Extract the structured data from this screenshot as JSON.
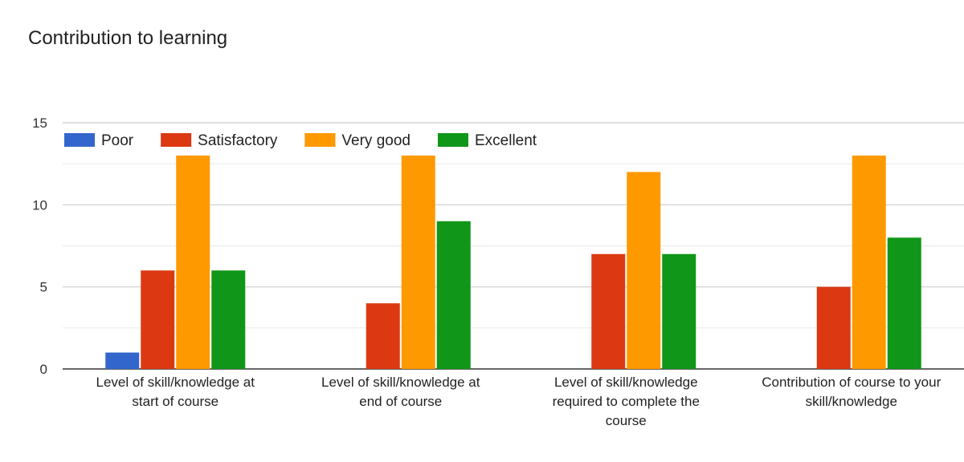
{
  "chart_data": {
    "type": "bar",
    "title": "Contribution to learning",
    "categories": [
      [
        "Level of skill/knowledge at",
        "start of course"
      ],
      [
        "Level of skill/knowledge at",
        "end of course"
      ],
      [
        "Level of skill/knowledge",
        "required to complete the",
        "course"
      ],
      [
        "Contribution of course to your",
        "skill/knowledge"
      ]
    ],
    "series": [
      {
        "name": "Poor",
        "color": "#3366cc",
        "values": [
          1,
          0,
          0,
          0
        ]
      },
      {
        "name": "Satisfactory",
        "color": "#dc3912",
        "values": [
          6,
          4,
          7,
          5
        ]
      },
      {
        "name": "Very good",
        "color": "#ff9900",
        "values": [
          13,
          13,
          12,
          13
        ]
      },
      {
        "name": "Excellent",
        "color": "#109618",
        "values": [
          6,
          9,
          7,
          8
        ]
      }
    ],
    "ylim": [
      0,
      15
    ],
    "yticks": [
      0,
      5,
      10,
      15
    ],
    "grid": true,
    "legend_position": "top-left"
  }
}
